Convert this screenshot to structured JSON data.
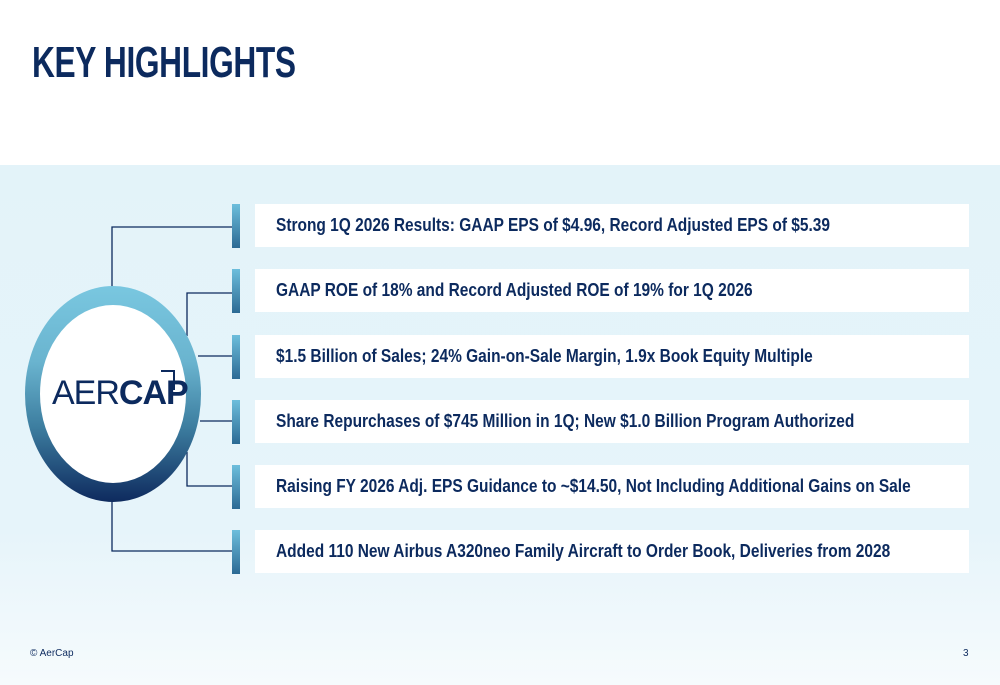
{
  "title": "KEY HIGHLIGHTS",
  "logo": {
    "part1": "AER",
    "part2": "CAP"
  },
  "highlights": [
    "Strong 1Q 2026 Results: GAAP EPS of $4.96, Record Adjusted EPS of $5.39",
    "GAAP ROE of 18% and Record Adjusted ROE of 19% for 1Q 2026",
    "$1.5 Billion of Sales; 24% Gain-on-Sale Margin, 1.9x Book Equity Multiple",
    "Share Repurchases of $745 Million in 1Q; New $1.0 Billion Program Authorized",
    "Raising FY 2026 Adj. EPS Guidance to ~$14.50, Not Including Additional Gains on Sale",
    "Added 110 New Airbus A320neo Family Aircraft to Order Book, Deliveries from 2028"
  ],
  "footer": {
    "copyright": "© AerCap",
    "page_number": "3"
  },
  "colors": {
    "navy": "#0c2a5e",
    "light_blue": "#79c7e0",
    "band": "#e3f3f9"
  }
}
